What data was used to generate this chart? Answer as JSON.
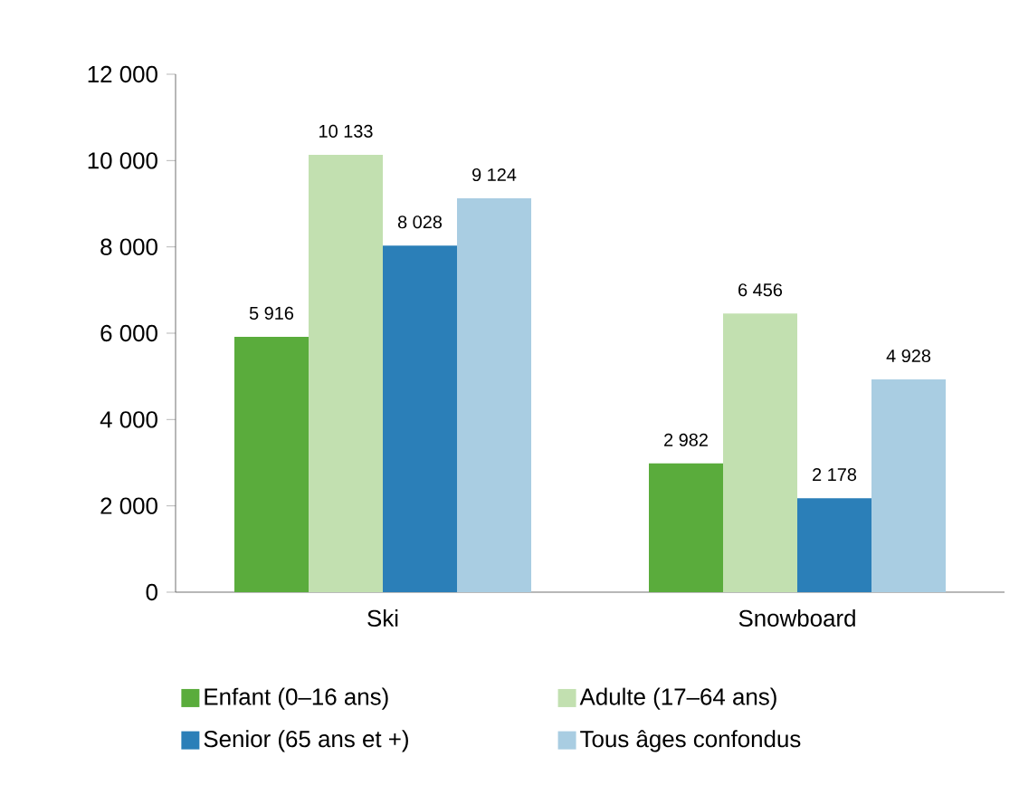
{
  "chart_data": {
    "type": "bar",
    "categories": [
      "Ski",
      "Snowboard"
    ],
    "series": [
      {
        "name": "Enfant (0–16 ans)",
        "color": "#5aac3c",
        "values": [
          5916,
          2982
        ],
        "value_labels": [
          "5 916",
          "2 982"
        ]
      },
      {
        "name": "Adulte (17–64 ans)",
        "color": "#c2e0b0",
        "values": [
          10133,
          6456
        ],
        "value_labels": [
          "10 133",
          "6 456"
        ]
      },
      {
        "name": "Senior (65 ans et +)",
        "color": "#2b7fb8",
        "values": [
          8028,
          2178
        ],
        "value_labels": [
          "8 028",
          "2 178"
        ]
      },
      {
        "name": "Tous âges confondus",
        "color": "#a9cde2",
        "values": [
          9124,
          4928
        ],
        "value_labels": [
          "9 124",
          "4 928"
        ]
      }
    ],
    "ylim": [
      0,
      12000
    ],
    "yticks": [
      {
        "value": 0,
        "label": "0"
      },
      {
        "value": 2000,
        "label": "2 000"
      },
      {
        "value": 4000,
        "label": "4 000"
      },
      {
        "value": 6000,
        "label": "6 000"
      },
      {
        "value": 8000,
        "label": "8 000"
      },
      {
        "value": 10000,
        "label": "10 000"
      },
      {
        "value": 12000,
        "label": "12 000"
      }
    ],
    "legend": "bottom",
    "grid": false
  }
}
